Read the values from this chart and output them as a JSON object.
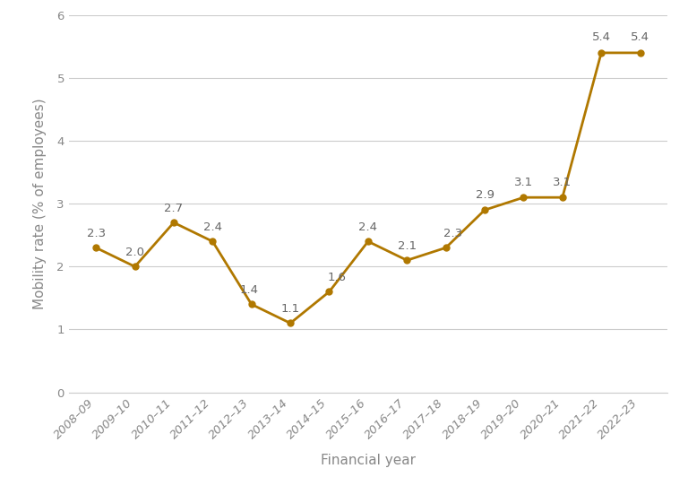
{
  "categories": [
    "2008–09",
    "2009–10",
    "2010–11",
    "2011–12",
    "2012–13",
    "2013–14",
    "2014–15",
    "2015–16",
    "2016–17",
    "2017–18",
    "2018–19",
    "2019–20",
    "2020–21",
    "2021–22",
    "2022–23"
  ],
  "values": [
    2.3,
    2.0,
    2.7,
    2.4,
    1.4,
    1.1,
    1.6,
    2.4,
    2.1,
    2.3,
    2.9,
    3.1,
    3.1,
    5.4,
    5.4
  ],
  "line_color": "#B07800",
  "marker_color": "#B07800",
  "ylabel": "Mobility rate (% of employees)",
  "xlabel": "Financial year",
  "ylim": [
    0,
    6
  ],
  "yticks": [
    0,
    1,
    2,
    3,
    4,
    5,
    6
  ],
  "background_color": "#ffffff",
  "grid_color": "#cccccc",
  "annotation_color": "#666666",
  "label_fontsize": 11,
  "annotation_fontsize": 9.5,
  "tick_fontsize": 9.5,
  "xlabel_fontsize": 11
}
